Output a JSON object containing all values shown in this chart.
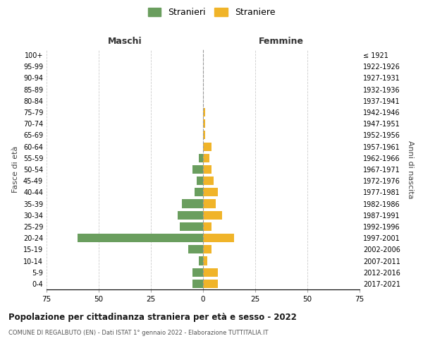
{
  "age_groups": [
    "100+",
    "95-99",
    "90-94",
    "85-89",
    "80-84",
    "75-79",
    "70-74",
    "65-69",
    "60-64",
    "55-59",
    "50-54",
    "45-49",
    "40-44",
    "35-39",
    "30-34",
    "25-29",
    "20-24",
    "15-19",
    "10-14",
    "5-9",
    "0-4"
  ],
  "birth_years": [
    "≤ 1921",
    "1922-1926",
    "1927-1931",
    "1932-1936",
    "1937-1941",
    "1942-1946",
    "1947-1951",
    "1952-1956",
    "1957-1961",
    "1962-1966",
    "1967-1971",
    "1972-1976",
    "1977-1981",
    "1982-1986",
    "1987-1991",
    "1992-1996",
    "1997-2001",
    "2002-2006",
    "2007-2011",
    "2012-2016",
    "2017-2021"
  ],
  "maschi": [
    0,
    0,
    0,
    0,
    0,
    0,
    0,
    0,
    0,
    2,
    5,
    3,
    4,
    10,
    12,
    11,
    60,
    7,
    2,
    5,
    5
  ],
  "femmine": [
    0,
    0,
    0,
    0,
    0,
    1,
    1,
    1,
    4,
    3,
    4,
    5,
    7,
    6,
    9,
    4,
    15,
    4,
    2,
    7,
    7
  ],
  "maschi_color": "#6a9e5e",
  "femmine_color": "#f0b429",
  "center_line_color": "#999999",
  "grid_color": "#cccccc",
  "bg_color": "#ffffff",
  "title": "Popolazione per cittadinanza straniera per età e sesso - 2022",
  "subtitle": "COMUNE DI REGALBUTO (EN) - Dati ISTAT 1° gennaio 2022 - Elaborazione TUTTITALIA.IT",
  "xlabel_left": "Maschi",
  "xlabel_right": "Femmine",
  "ylabel_left": "Fasce di età",
  "ylabel_right": "Anni di nascita",
  "legend_maschi": "Stranieri",
  "legend_femmine": "Straniere",
  "xlim": 75
}
